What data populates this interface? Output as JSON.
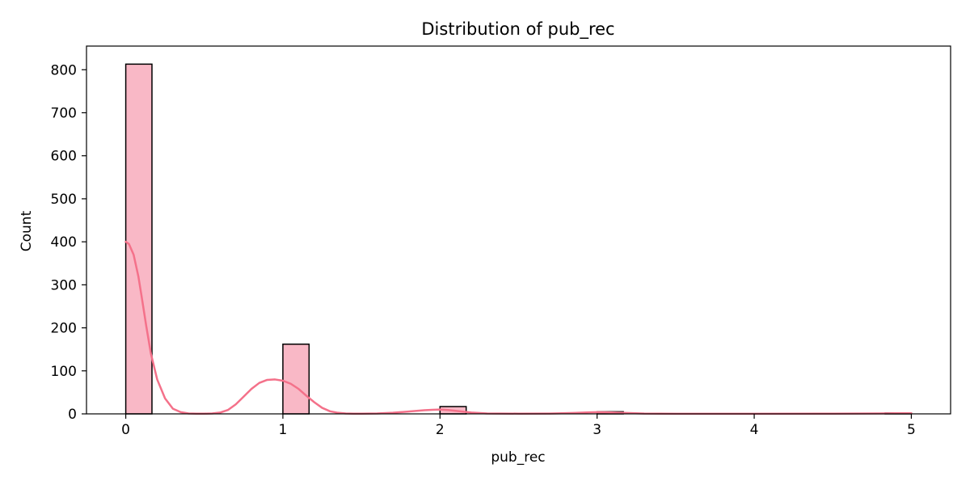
{
  "chart_data": {
    "type": "bar",
    "title": "Distribution of pub_rec",
    "xlabel": "pub_rec",
    "ylabel": "Count",
    "xlim": [
      -0.25,
      5.25
    ],
    "ylim": [
      0,
      855
    ],
    "xticks": [
      0,
      1,
      2,
      3,
      4,
      5
    ],
    "yticks": [
      0,
      100,
      200,
      300,
      400,
      500,
      600,
      700,
      800
    ],
    "bins": [
      {
        "x0": 0.0,
        "x1": 0.1667,
        "count": 813
      },
      {
        "x0": 1.0,
        "x1": 1.1667,
        "count": 162
      },
      {
        "x0": 2.0,
        "x1": 2.1667,
        "count": 17
      },
      {
        "x0": 3.0,
        "x1": 3.1667,
        "count": 5
      },
      {
        "x0": 4.8333,
        "x1": 5.0,
        "count": 2
      }
    ],
    "kde": {
      "x": [
        0.0,
        0.02,
        0.05,
        0.08,
        0.1,
        0.13,
        0.16,
        0.2,
        0.25,
        0.3,
        0.35,
        0.4,
        0.45,
        0.5,
        0.55,
        0.6,
        0.65,
        0.7,
        0.75,
        0.8,
        0.85,
        0.9,
        0.95,
        1.0,
        1.05,
        1.1,
        1.15,
        1.2,
        1.25,
        1.3,
        1.35,
        1.4,
        1.45,
        1.5,
        1.6,
        1.7,
        1.8,
        1.9,
        1.95,
        2.0,
        2.05,
        2.1,
        2.2,
        2.3,
        2.5,
        2.7,
        2.85,
        2.95,
        3.0,
        3.05,
        3.15,
        3.3,
        3.5,
        4.0,
        4.5,
        4.8,
        4.9,
        5.0
      ],
      "y": [
        400,
        395,
        370,
        320,
        275,
        205,
        140,
        80,
        36,
        12,
        4,
        1,
        0.5,
        0.5,
        1,
        3,
        9,
        22,
        40,
        58,
        72,
        79,
        80,
        77,
        70,
        58,
        42,
        27,
        14,
        6,
        2.5,
        1,
        0.5,
        0.5,
        1,
        2.5,
        5.5,
        8.5,
        9.5,
        10,
        9,
        7,
        3,
        1,
        0.5,
        0.8,
        2.2,
        3.5,
        4,
        3.8,
        2.5,
        0.8,
        0.3,
        0.2,
        0.4,
        1,
        1.3,
        1.5
      ]
    },
    "grid": false,
    "colors": {
      "bar_fill": "#f9b8c6",
      "bar_edge": "#000000",
      "kde_line": "#f4718a"
    }
  }
}
